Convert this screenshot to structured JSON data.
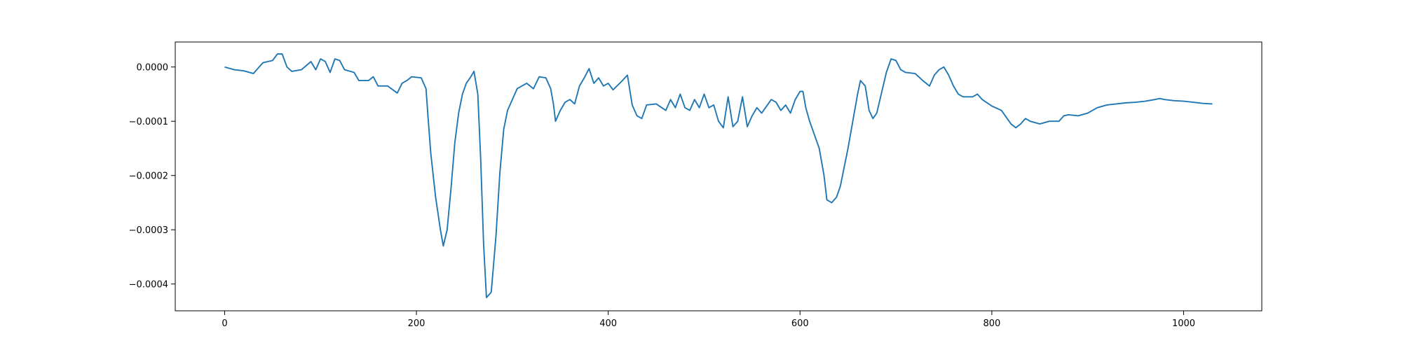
{
  "chart_data": {
    "type": "line",
    "x": [
      0,
      10,
      20,
      30,
      40,
      50,
      55,
      60,
      65,
      70,
      80,
      90,
      95,
      100,
      105,
      110,
      115,
      120,
      125,
      135,
      140,
      150,
      155,
      160,
      170,
      180,
      185,
      190,
      195,
      205,
      210,
      212,
      215,
      220,
      225,
      228,
      232,
      236,
      240,
      244,
      248,
      252,
      256,
      260,
      264,
      267,
      270,
      273,
      278,
      283,
      287,
      291,
      295,
      300,
      305,
      310,
      315,
      322,
      328,
      335,
      340,
      343,
      345,
      350,
      355,
      360,
      365,
      370,
      375,
      380,
      385,
      390,
      395,
      400,
      405,
      412,
      420,
      425,
      430,
      435,
      440,
      450,
      460,
      465,
      470,
      475,
      480,
      485,
      490,
      495,
      500,
      505,
      510,
      515,
      520,
      525,
      530,
      535,
      540,
      545,
      550,
      555,
      560,
      570,
      575,
      580,
      585,
      590,
      595,
      600,
      603,
      606,
      610,
      615,
      620,
      625,
      628,
      633,
      638,
      642,
      646,
      650,
      655,
      660,
      663,
      668,
      672,
      676,
      680,
      686,
      690,
      695,
      700,
      705,
      710,
      720,
      728,
      735,
      740,
      745,
      750,
      755,
      760,
      765,
      770,
      780,
      785,
      790,
      800,
      810,
      820,
      825,
      830,
      835,
      840,
      850,
      860,
      870,
      875,
      880,
      890,
      900,
      910,
      920,
      930,
      940,
      950,
      960,
      970,
      975,
      980,
      990,
      1000,
      1010,
      1020,
      1030
    ],
    "series": [
      {
        "color": "#1f77b4",
        "values": [
          0,
          -5e-06,
          -7e-06,
          -1.2e-05,
          8e-06,
          1.2e-05,
          2.4e-05,
          2.4e-05,
          0,
          -8e-06,
          -5e-06,
          1e-05,
          -5e-06,
          1.5e-05,
          1e-05,
          -1e-05,
          1.5e-05,
          1.2e-05,
          -5e-06,
          -1e-05,
          -2.5e-05,
          -2.5e-05,
          -1.8e-05,
          -3.5e-05,
          -3.5e-05,
          -4.8e-05,
          -3e-05,
          -2.5e-05,
          -1.8e-05,
          -2e-05,
          -4e-05,
          -9e-05,
          -0.00016,
          -0.00024,
          -0.0003,
          -0.00033,
          -0.0003,
          -0.000225,
          -0.00014,
          -8.5e-05,
          -5e-05,
          -3e-05,
          -2e-05,
          -8e-06,
          -5e-05,
          -0.00017,
          -0.000325,
          -0.000425,
          -0.000415,
          -0.00031,
          -0.000195,
          -0.000115,
          -8e-05,
          -6e-05,
          -4e-05,
          -3.5e-05,
          -3e-05,
          -4e-05,
          -1.8e-05,
          -2e-05,
          -4e-05,
          -7e-05,
          -0.0001,
          -8e-05,
          -6.5e-05,
          -6e-05,
          -6.8e-05,
          -3.5e-05,
          -2e-05,
          -3e-06,
          -3e-05,
          -2e-05,
          -3.5e-05,
          -3e-05,
          -4.2e-05,
          -3e-05,
          -1.5e-05,
          -7e-05,
          -9e-05,
          -9.5e-05,
          -7e-05,
          -6.8e-05,
          -8e-05,
          -6e-05,
          -7.5e-05,
          -5e-05,
          -7.5e-05,
          -8e-05,
          -6e-05,
          -7.5e-05,
          -5e-05,
          -7.5e-05,
          -7e-05,
          -0.0001,
          -0.000112,
          -5.5e-05,
          -0.00011,
          -0.0001,
          -5.5e-05,
          -0.00011,
          -9e-05,
          -7.5e-05,
          -8.5e-05,
          -6e-05,
          -6.5e-05,
          -8e-05,
          -7e-05,
          -8.5e-05,
          -6e-05,
          -4.5e-05,
          -4.5e-05,
          -7.5e-05,
          -0.0001,
          -0.000125,
          -0.00015,
          -0.0002,
          -0.000245,
          -0.00025,
          -0.00024,
          -0.00022,
          -0.000185,
          -0.00015,
          -0.0001,
          -5e-05,
          -2.5e-05,
          -3.5e-05,
          -8e-05,
          -9.5e-05,
          -8.5e-05,
          -4e-05,
          -1e-05,
          1.5e-05,
          1.2e-05,
          -5e-06,
          -1e-05,
          -1.2e-05,
          -2.5e-05,
          -3.5e-05,
          -1.5e-05,
          -5e-06,
          0,
          -1.5e-05,
          -3.5e-05,
          -5e-05,
          -5.5e-05,
          -5.5e-05,
          -5e-05,
          -6e-05,
          -7.2e-05,
          -8e-05,
          -0.000105,
          -0.000112,
          -0.000105,
          -9.5e-05,
          -0.0001,
          -0.000105,
          -0.0001,
          -0.0001,
          -9e-05,
          -8.8e-05,
          -9e-05,
          -8.5e-05,
          -7.5e-05,
          -7e-05,
          -6.8e-05,
          -6.6e-05,
          -6.5e-05,
          -6.3e-05,
          -6e-05,
          -5.8e-05,
          -6e-05,
          -6.2e-05,
          -6.3e-05,
          -6.5e-05,
          -6.7e-05,
          -6.8e-05
        ]
      }
    ],
    "xlim": [
      -51.5,
      1081.5
    ],
    "ylim": [
      -0.0004494,
      4.61e-05
    ],
    "xticks": [
      0,
      200,
      400,
      600,
      800,
      1000
    ],
    "yticks": [
      {
        "value": -0.0004,
        "label": "−0.0004"
      },
      {
        "value": -0.0003,
        "label": "−0.0003"
      },
      {
        "value": -0.0002,
        "label": "−0.0002"
      },
      {
        "value": -0.0001,
        "label": "−0.0001"
      },
      {
        "value": 0,
        "label": "0.0000"
      }
    ]
  }
}
